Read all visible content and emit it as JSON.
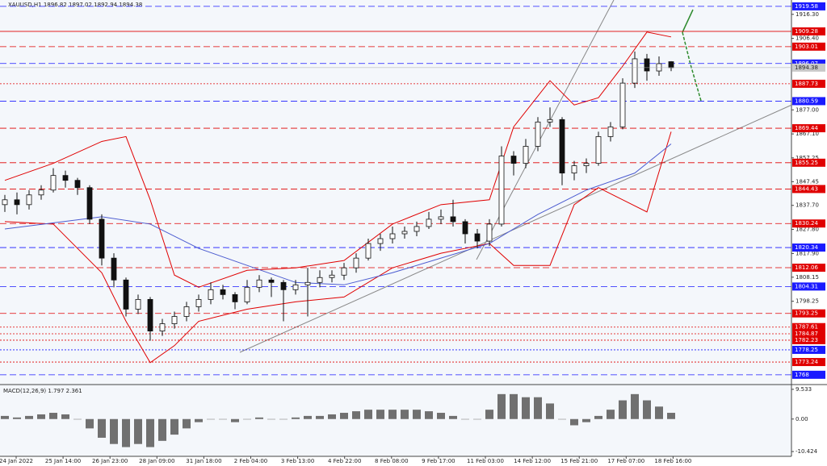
{
  "chart_data": {
    "type": "candlestick",
    "title": "XAUUSD,H1  1896.82 1897.02 1892.94 1894.38",
    "xtick_labels": [
      "24 Jan 2022",
      "25 Jan 14:00",
      "26 Jan 23:00",
      "28 Jan 09:00",
      "31 Jan 18:00",
      "2 Feb 04:00",
      "3 Feb 13:00",
      "4 Feb 22:00",
      "8 Feb 08:00",
      "9 Feb 17:00",
      "11 Feb 03:00",
      "14 Feb 12:00",
      "15 Feb 21:00",
      "17 Feb 07:00",
      "18 Feb 16:00"
    ],
    "open": [
      1838,
      1840,
      1838,
      1842,
      1844,
      1850,
      1848,
      1845,
      1832,
      1816,
      1807,
      1795,
      1799,
      1786,
      1789,
      1792,
      1796,
      1799,
      1803,
      1801,
      1798,
      1804,
      1807,
      1806,
      1803,
      1805,
      1806,
      1808,
      1809,
      1812,
      1816,
      1822,
      1824,
      1826,
      1827,
      1829,
      1832,
      1833,
      1831,
      1826,
      1823,
      1830,
      1858,
      1855,
      1862,
      1872,
      1873,
      1851,
      1854,
      1855,
      1866,
      1870,
      1888,
      1898,
      1893,
      1896.82
    ],
    "high": [
      1842,
      1843,
      1844,
      1846,
      1853,
      1852,
      1849,
      1846,
      1834,
      1818,
      1808,
      1801,
      1800,
      1791,
      1794,
      1798,
      1801,
      1806,
      1805,
      1802,
      1807,
      1809,
      1808,
      1807,
      1807,
      1812,
      1811,
      1811,
      1814,
      1818,
      1824,
      1826,
      1829,
      1829,
      1831,
      1835,
      1836,
      1840,
      1832,
      1828,
      1832,
      1862,
      1860,
      1865,
      1874,
      1878,
      1874,
      1856,
      1857,
      1868,
      1872,
      1890,
      1901,
      1900,
      1899,
      1897.02
    ],
    "low": [
      1835,
      1834,
      1836,
      1840,
      1843,
      1845,
      1842,
      1830,
      1813,
      1804,
      1792,
      1793,
      1782,
      1784,
      1787,
      1790,
      1794,
      1797,
      1799,
      1795,
      1797,
      1802,
      1800,
      1790,
      1801,
      1792,
      1804,
      1806,
      1807,
      1810,
      1815,
      1819,
      1822,
      1824,
      1825,
      1828,
      1830,
      1829,
      1822,
      1820,
      1821,
      1829,
      1850,
      1853,
      1860,
      1870,
      1846,
      1848,
      1851,
      1854,
      1864,
      1869,
      1886,
      1889,
      1891,
      1892.94
    ],
    "close": [
      1840,
      1838,
      1842,
      1844,
      1850,
      1848,
      1845,
      1832,
      1816,
      1807,
      1795,
      1799,
      1786,
      1789,
      1792,
      1796,
      1799,
      1803,
      1801,
      1798,
      1804,
      1807,
      1806,
      1803,
      1805,
      1806,
      1808,
      1809,
      1812,
      1816,
      1822,
      1824,
      1826,
      1827,
      1829,
      1832,
      1833,
      1831,
      1826,
      1823,
      1830,
      1858,
      1855,
      1862,
      1872,
      1873,
      1851,
      1854,
      1855,
      1866,
      1870,
      1888,
      1898,
      1893,
      1896,
      1894.38
    ],
    "current_price": 1894.38,
    "overlays": [
      {
        "color": "#e00000",
        "x": [
          0,
          4,
          8,
          10,
          12,
          14,
          16,
          20,
          24,
          28,
          32,
          36,
          40,
          42,
          45,
          47,
          49,
          51,
          53,
          55
        ],
        "values": [
          1848,
          1855,
          1864,
          1866,
          1840,
          1809,
          1804,
          1811,
          1812,
          1815,
          1830,
          1838,
          1840,
          1870,
          1889,
          1879,
          1882,
          1895,
          1909,
          1907
        ]
      },
      {
        "color": "#e00000",
        "x": [
          0,
          4,
          8,
          10,
          12,
          14,
          16,
          20,
          24,
          28,
          32,
          36,
          40,
          42,
          45,
          47,
          49,
          51,
          53,
          55
        ],
        "values": [
          1831,
          1830,
          1810,
          1790,
          1773,
          1780,
          1790,
          1795,
          1798,
          1800,
          1812,
          1818,
          1822,
          1813,
          1813,
          1838,
          1845,
          1840,
          1835,
          1868
        ]
      },
      {
        "color": "#4b5bd0",
        "x": [
          0,
          8,
          12,
          16,
          20,
          24,
          28,
          32,
          36,
          40,
          44,
          48,
          52,
          55
        ],
        "values": [
          1828,
          1833,
          1830,
          1820,
          1813,
          1806,
          1805,
          1810,
          1816,
          1822,
          1834,
          1844,
          1851,
          1863
        ]
      }
    ],
    "levels": [
      {
        "value": 1919.58,
        "color": "#1a1aff",
        "style": "dashed"
      },
      {
        "value": 1909.28,
        "color": "#e00000",
        "style": "solid"
      },
      {
        "value": 1903.01,
        "color": "#e00000",
        "style": "dashed"
      },
      {
        "value": 1896.07,
        "color": "#1a1aff",
        "style": "dashed"
      },
      {
        "value": 1887.73,
        "color": "#e00000",
        "style": "dotted"
      },
      {
        "value": 1880.59,
        "color": "#1a1aff",
        "style": "dashed"
      },
      {
        "value": 1869.44,
        "color": "#e00000",
        "style": "dashed"
      },
      {
        "value": 1855.25,
        "color": "#e00000",
        "style": "dashed"
      },
      {
        "value": 1844.43,
        "color": "#e00000",
        "style": "dashed"
      },
      {
        "value": 1830.24,
        "color": "#e00000",
        "style": "dashed"
      },
      {
        "value": 1820.34,
        "color": "#1a1aff",
        "style": "dashed"
      },
      {
        "value": 1812.06,
        "color": "#e00000",
        "style": "dashed"
      },
      {
        "value": 1804.31,
        "color": "#1a1aff",
        "style": "dashed"
      },
      {
        "value": 1793.25,
        "color": "#e00000",
        "style": "dashed"
      },
      {
        "value": 1787.61,
        "color": "#e00000",
        "style": "dotted"
      },
      {
        "value": 1784.87,
        "color": "#e00000",
        "style": "dotted"
      },
      {
        "value": 1782.23,
        "color": "#e00000",
        "style": "dotted"
      },
      {
        "value": 1778.25,
        "color": "#1a1aff",
        "style": "dotted"
      },
      {
        "value": 1773.24,
        "color": "#e00000",
        "style": "dotted"
      },
      {
        "value": 1768.0,
        "color": "#1a1aff",
        "style": "dashed"
      }
    ],
    "ylim": [
      1764.3,
      1922.2
    ],
    "yticks": [
      {
        "value": 1916.3,
        "label": "1916.30"
      },
      {
        "value": 1906.4,
        "label": "1906.40"
      },
      {
        "value": 1877,
        "label": "1877.00"
      },
      {
        "value": 1867.1,
        "label": "1867.10"
      },
      1857.25,
      1847.45,
      {
        "value": 1837.7,
        "label": "1837.70"
      },
      {
        "value": 1827.8,
        "label": "1827.80"
      },
      {
        "value": 1817.9,
        "label": "1817.90"
      },
      1808.15,
      1798.25
    ],
    "macd": {
      "label": "MACD(12,26,9) 1.797 2.361",
      "color": "#707070",
      "values": [
        1,
        0.5,
        1,
        1.5,
        2,
        1.5,
        0,
        -3,
        -6,
        -8,
        -9,
        -8,
        -9,
        -7,
        -5,
        -3,
        -1,
        0,
        0,
        -1,
        0,
        0.5,
        0,
        0,
        0.5,
        1,
        1,
        1.5,
        2,
        2.5,
        3,
        3,
        3,
        3,
        3,
        2.5,
        2,
        1,
        0,
        0,
        3,
        8,
        8,
        7,
        7,
        5,
        0,
        -2,
        -1,
        1,
        3,
        6,
        8,
        6,
        4,
        2
      ],
      "ylim": [
        -11.7,
        10.8
      ],
      "yticks": [
        9.533,
        {
          "value": 0,
          "label": "0.00"
        },
        -10.424
      ]
    }
  }
}
